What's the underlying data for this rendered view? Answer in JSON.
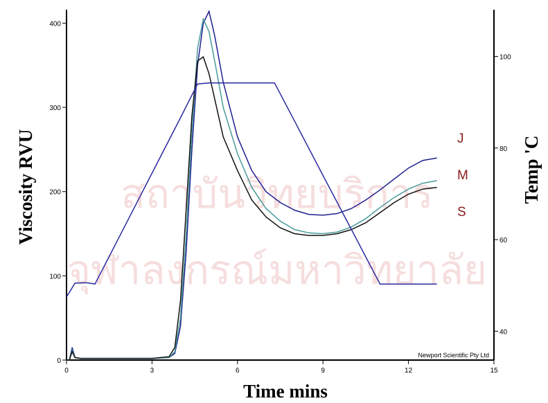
{
  "chart_data": {
    "type": "line",
    "watermark": [
      "สถาบันวิทยบริการ",
      "จุฬาลงกรณ์มหาวิทยาลัย"
    ],
    "xlabel": "Time mins",
    "ylabel": "Viscosity RVU",
    "y2label": "Temp 'C",
    "xlim": [
      0,
      15
    ],
    "xticks": [
      0,
      3,
      6,
      9,
      12,
      15
    ],
    "ylim": [
      0,
      416
    ],
    "yticks": [
      0,
      100,
      200,
      300,
      400
    ],
    "y2lim": [
      33.7,
      110.2
    ],
    "y2ticks": [
      40,
      60,
      80,
      100
    ],
    "series": [
      {
        "name": "J",
        "color": "#8b1a1a",
        "line_color": "#1f1f8f",
        "x": [
          0,
          0.1,
          0.2,
          0.3,
          0.5,
          1,
          2,
          3,
          3.6,
          3.8,
          4,
          4.2,
          4.4,
          4.6,
          4.8,
          5,
          5.2,
          5.5,
          6,
          6.5,
          7,
          7.5,
          8,
          8.5,
          9,
          9.5,
          10,
          10.5,
          11,
          11.5,
          12,
          12.5,
          13
        ],
        "values": [
          0,
          0,
          15,
          3,
          2,
          2,
          2,
          2,
          3,
          8,
          40,
          130,
          250,
          350,
          400,
          414,
          385,
          330,
          265,
          225,
          200,
          187,
          178,
          173,
          172,
          174,
          180,
          190,
          202,
          215,
          228,
          237,
          240
        ]
      },
      {
        "name": "M",
        "color": "#8b1a1a",
        "line_color": "#4a9a9a",
        "x": [
          0,
          0.1,
          0.2,
          0.3,
          0.5,
          1,
          2,
          3,
          3.6,
          3.8,
          4,
          4.2,
          4.4,
          4.6,
          4.8,
          5,
          5.2,
          5.5,
          6,
          6.5,
          7,
          7.5,
          8,
          8.5,
          9,
          9.5,
          10,
          10.5,
          11,
          11.5,
          12,
          12.5,
          13
        ],
        "values": [
          0,
          0,
          12,
          3,
          2,
          2,
          2,
          2,
          3,
          10,
          50,
          150,
          270,
          370,
          405,
          390,
          355,
          300,
          245,
          205,
          180,
          165,
          155,
          151,
          150,
          152,
          158,
          168,
          181,
          193,
          203,
          210,
          213
        ]
      },
      {
        "name": "S",
        "color": "#8b1a1a",
        "line_color": "#111111",
        "x": [
          0,
          0.1,
          0.2,
          0.3,
          0.5,
          1,
          2,
          3,
          3.6,
          3.8,
          4,
          4.2,
          4.4,
          4.6,
          4.8,
          5,
          5.2,
          5.5,
          6,
          6.5,
          7,
          7.5,
          8,
          8.5,
          9,
          9.5,
          10,
          10.5,
          11,
          11.5,
          12,
          12.5,
          13
        ],
        "values": [
          0,
          0,
          10,
          3,
          2,
          2,
          2,
          2,
          4,
          15,
          70,
          180,
          290,
          355,
          360,
          340,
          310,
          265,
          225,
          190,
          170,
          157,
          150,
          148,
          148,
          150,
          155,
          163,
          175,
          187,
          197,
          203,
          205
        ]
      },
      {
        "line_color": "#2a2aa0",
        "axis": "y2",
        "x": [
          0,
          0.1,
          0.3,
          0.7,
          1,
          2,
          3,
          4,
          4.6,
          5,
          6,
          7,
          7.3,
          8,
          9,
          10,
          11,
          12,
          13
        ],
        "values": [
          47.5,
          48.5,
          50.5,
          50.6,
          50.3,
          62.4,
          74.5,
          86.6,
          94,
          94.2,
          94.2,
          94.2,
          94.2,
          85.9,
          74,
          62.2,
          50.3,
          50.3,
          50.3
        ]
      }
    ],
    "annotation": "Newport Scientific Pty Ltd"
  }
}
